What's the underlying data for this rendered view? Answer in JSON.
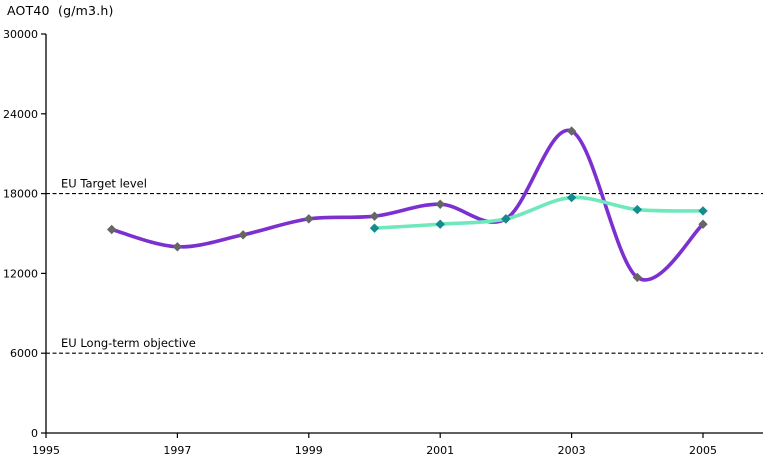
{
  "chart_data": {
    "type": "line",
    "title": "AOT40  (g/m3.h)",
    "xlabel": "",
    "ylabel": "",
    "smoothed": true,
    "grid": false,
    "legend_position": "none",
    "xlim": [
      1995,
      2005.9
    ],
    "ylim": [
      0,
      30000
    ],
    "x_tick_values": [
      1995,
      1997,
      1999,
      2001,
      2003,
      2005
    ],
    "x_tick_labels": [
      "1995",
      "1997",
      "1999",
      "2001",
      "2003",
      "2005"
    ],
    "y_tick_values": [
      0,
      6000,
      12000,
      18000,
      24000,
      30000
    ],
    "y_tick_labels": [
      "0",
      "6000",
      "12000",
      "18000",
      "24000",
      "30000"
    ],
    "axis_color": "#000000",
    "reference_lines": [
      {
        "label": "EU Target level",
        "value": 18000,
        "color": "#000000",
        "style": "dashed"
      },
      {
        "label": "EU Long-term objective",
        "value": 6000,
        "color": "#000000",
        "style": "dashed"
      }
    ],
    "series": [
      {
        "name": "purple-series",
        "line_color": "#7D30D0",
        "marker": "diamond",
        "marker_color": "#666666",
        "x": [
          1996,
          1997,
          1998,
          1999,
          2000,
          2001,
          2002,
          2003,
          2004,
          2005
        ],
        "values": [
          15300,
          14000,
          14900,
          16100,
          16300,
          17200,
          16100,
          22700,
          11700,
          15700
        ]
      },
      {
        "name": "green-series",
        "line_color": "#6FE9BB",
        "marker": "diamond",
        "marker_color": "#148B8D",
        "x": [
          2000,
          2001,
          2002,
          2003,
          2004,
          2005
        ],
        "values": [
          15400,
          15700,
          16100,
          17700,
          16800,
          16700
        ]
      }
    ]
  }
}
